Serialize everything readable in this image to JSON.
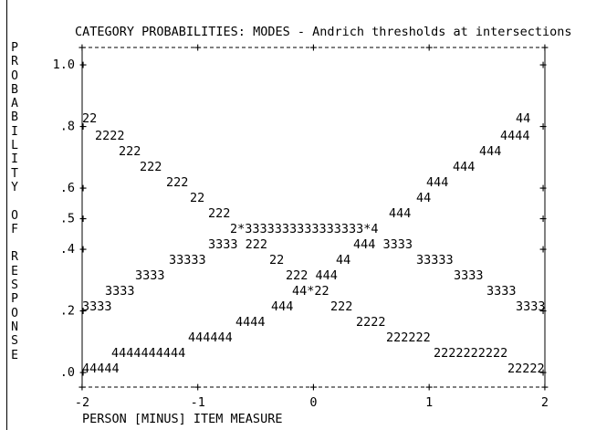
{
  "chart_data": {
    "type": "line",
    "title": "CATEGORY PROBABILITIES: MODES - Andrich thresholds at intersections",
    "xlabel": "PERSON [MINUS] ITEM MEASURE",
    "ylabel_letters": [
      "P",
      "R",
      "O",
      "B",
      "A",
      "B",
      "I",
      "L",
      "I",
      "T",
      "Y",
      "",
      "O",
      "F",
      "",
      "R",
      "E",
      "S",
      "P",
      "O",
      "N",
      "S",
      "E"
    ],
    "xlim": [
      -2,
      2
    ],
    "ylim": [
      0,
      1
    ],
    "x_ticks": [
      "-2",
      "-1",
      "0",
      "1",
      "2"
    ],
    "y_ticks": [
      {
        "value": 1.0,
        "label": "1.0"
      },
      {
        "value": 0.8,
        "label": ".8"
      },
      {
        "value": 0.6,
        "label": ".6"
      },
      {
        "value": 0.5,
        "label": ".5"
      },
      {
        "value": 0.4,
        "label": ".4"
      },
      {
        "value": 0.2,
        "label": ".2"
      },
      {
        "value": 0.0,
        "label": ".0"
      }
    ],
    "plot_char_rows": [
      {
        "y": 0.8,
        "left": "22",
        "right": "44"
      },
      {
        "y": null,
        "segments": [
          "2222",
          "4444"
        ]
      },
      {
        "y": null,
        "segments": [
          "222",
          "444"
        ]
      },
      {
        "y": null,
        "segments": [
          "222",
          "444"
        ]
      },
      {
        "y": 0.6,
        "segments": [
          "222",
          "444"
        ]
      },
      {
        "y": null,
        "segments": [
          "22",
          "44"
        ]
      },
      {
        "y": 0.5,
        "segments": [
          "222",
          "444"
        ]
      },
      {
        "y": null,
        "segments": [
          "2*3333333333333333*4"
        ]
      },
      {
        "y": 0.4,
        "segments": [
          "3333 222",
          "444 3333"
        ]
      },
      {
        "y": null,
        "segments": [
          "33333",
          "22",
          "44",
          "33333"
        ]
      },
      {
        "y": null,
        "segments": [
          "3333",
          "222 444",
          "3333"
        ]
      },
      {
        "y": null,
        "segments": [
          "3333",
          "44*22",
          "3333"
        ]
      },
      {
        "y": 0.2,
        "left": "3333",
        "segments": [
          "444",
          "222"
        ],
        "right": "3333"
      },
      {
        "y": null,
        "segments": [
          "4444",
          "2222"
        ]
      },
      {
        "y": null,
        "segments": [
          "444444",
          "222222"
        ]
      },
      {
        "y": null,
        "segments": [
          "4444444444",
          "2222222222"
        ]
      },
      {
        "y": 0.0,
        "left": "44444",
        "right": "22222"
      }
    ],
    "series": [
      {
        "name": "2",
        "points": [
          [
            -2.0,
            0.8
          ],
          [
            -1.5,
            0.62
          ],
          [
            -1.0,
            0.47
          ],
          [
            -0.5,
            0.38
          ],
          [
            0.0,
            0.26
          ],
          [
            0.5,
            0.16
          ],
          [
            1.0,
            0.1
          ],
          [
            1.5,
            0.06
          ],
          [
            2.0,
            0.01
          ]
        ]
      },
      {
        "name": "3",
        "points": [
          [
            -2.0,
            0.19
          ],
          [
            -1.5,
            0.3
          ],
          [
            -1.0,
            0.4
          ],
          [
            -0.5,
            0.46
          ],
          [
            0.0,
            0.47
          ],
          [
            0.5,
            0.46
          ],
          [
            1.0,
            0.4
          ],
          [
            1.5,
            0.3
          ],
          [
            2.0,
            0.19
          ]
        ]
      },
      {
        "name": "4",
        "points": [
          [
            -2.0,
            0.01
          ],
          [
            -1.5,
            0.06
          ],
          [
            -1.0,
            0.1
          ],
          [
            -0.5,
            0.16
          ],
          [
            0.0,
            0.26
          ],
          [
            0.5,
            0.38
          ],
          [
            1.0,
            0.47
          ],
          [
            1.5,
            0.62
          ],
          [
            2.0,
            0.8
          ]
        ]
      }
    ],
    "grid": false,
    "legend": "none"
  }
}
